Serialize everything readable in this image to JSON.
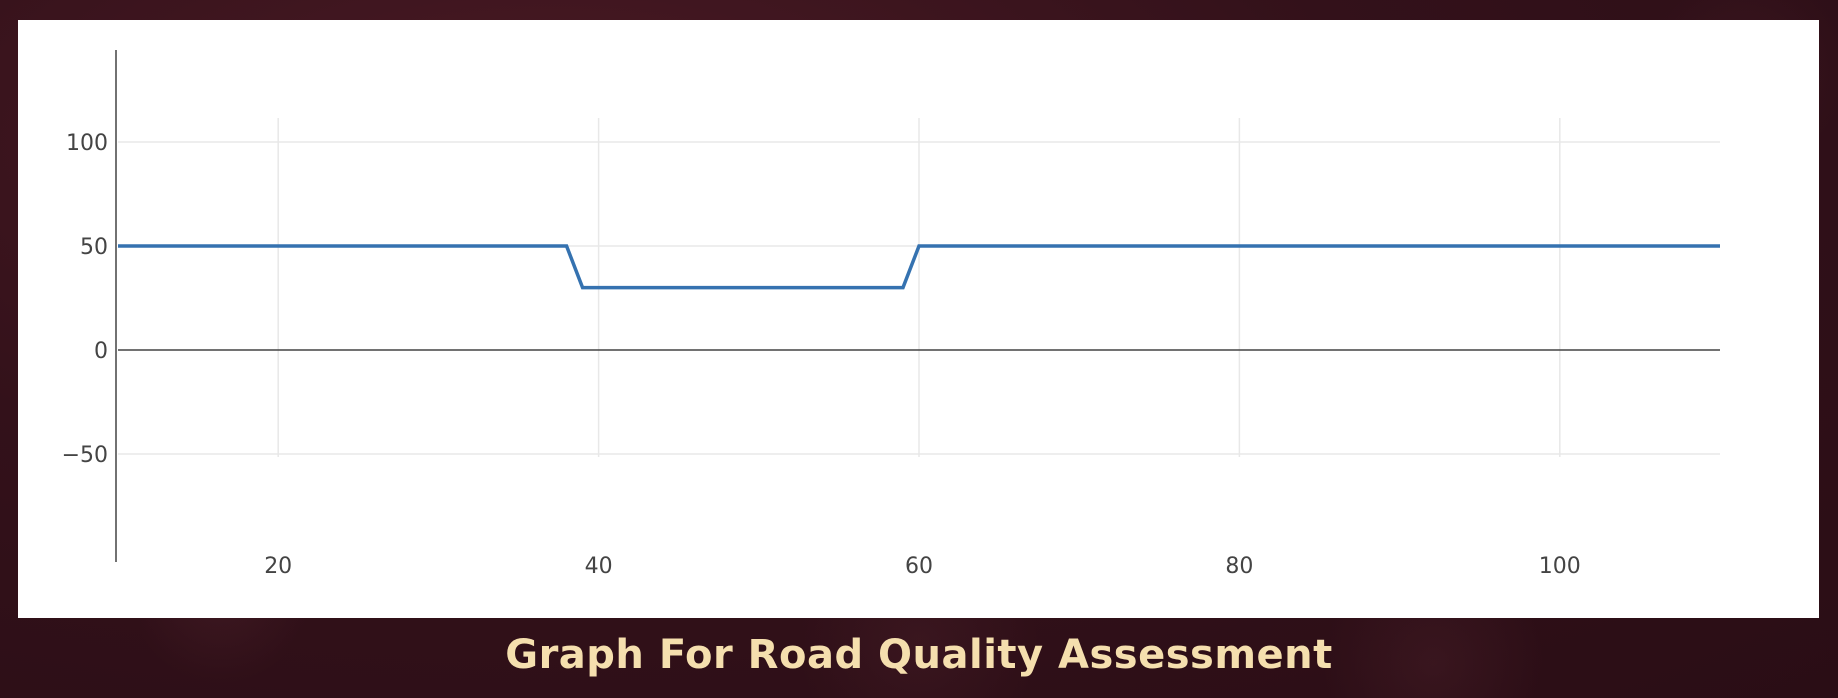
{
  "page": {
    "caption": "Graph For Road Quality Assessment",
    "background_color": "#33111a",
    "caption_color": "#f5dfae"
  },
  "chart_data": {
    "type": "line",
    "title": "",
    "xlabel": "",
    "ylabel": "",
    "xlim": [
      10,
      110
    ],
    "ylim": [
      -100,
      150
    ],
    "x_ticks": [
      20,
      40,
      60,
      80,
      100
    ],
    "y_ticks": [
      -50,
      0,
      50,
      100
    ],
    "y_tick_labels": [
      "−50",
      "0",
      "50",
      "100"
    ],
    "grid": true,
    "legend": "none",
    "line_color": "#3572b0",
    "x": [
      10,
      38,
      39,
      59,
      60,
      110
    ],
    "y": [
      50,
      50,
      30,
      30,
      50,
      50
    ]
  }
}
